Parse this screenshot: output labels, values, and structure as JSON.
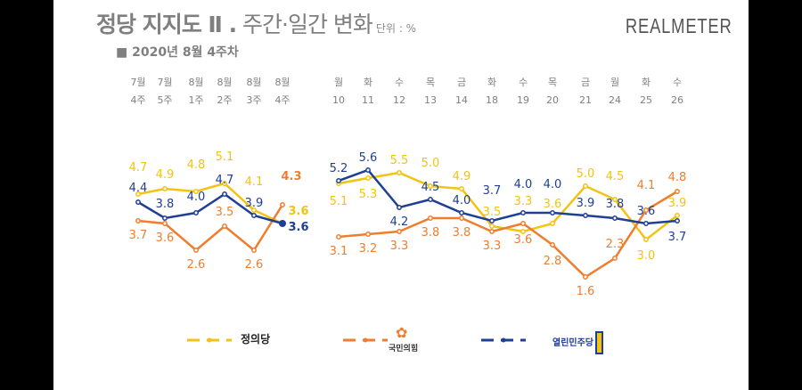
{
  "header": {
    "title_main": "정당 지지도 Ⅱ .",
    "title_sub": " 주간·일간 변화",
    "unit": "단위 : %",
    "week": "■ 2020년 8월 4주차",
    "logo": "REALMETER"
  },
  "chart_data": {
    "type": "line",
    "weekly": {
      "categories": [
        [
          "7월",
          "4주"
        ],
        [
          "7월",
          "5주"
        ],
        [
          "8월",
          "1주"
        ],
        [
          "8월",
          "2주"
        ],
        [
          "8월",
          "3주"
        ],
        [
          "8월",
          "4주"
        ]
      ]
    },
    "daily": {
      "categories": [
        [
          "월",
          "10"
        ],
        [
          "화",
          "11"
        ],
        [
          "수",
          "12"
        ],
        [
          "목",
          "13"
        ],
        [
          "금",
          "14"
        ],
        [
          "화",
          "18"
        ],
        [
          "수",
          "19"
        ],
        [
          "목",
          "20"
        ],
        [
          "금",
          "21"
        ],
        [
          "월",
          "24"
        ],
        [
          "화",
          "25"
        ],
        [
          "수",
          "26"
        ]
      ]
    },
    "series": [
      {
        "name": "정의당",
        "color": "#f2c311",
        "weekly": [
          4.7,
          4.9,
          4.8,
          5.1,
          4.1,
          3.6
        ],
        "daily": [
          5.1,
          5.3,
          5.5,
          5.0,
          4.9,
          3.5,
          3.3,
          3.6,
          5.0,
          4.5,
          3.0,
          3.9
        ]
      },
      {
        "name": "국민의힘",
        "color": "#f07d2e",
        "weekly": [
          3.7,
          3.6,
          2.6,
          3.5,
          2.6,
          4.3
        ],
        "daily": [
          3.1,
          3.2,
          3.3,
          3.8,
          3.8,
          3.3,
          3.6,
          2.8,
          1.6,
          2.3,
          4.1,
          4.8
        ]
      },
      {
        "name": "열린민주당",
        "color": "#1f3f94",
        "weekly": [
          4.4,
          3.8,
          4.0,
          4.7,
          3.9,
          3.6
        ],
        "daily": [
          5.2,
          5.6,
          4.2,
          4.5,
          4.0,
          3.7,
          4.0,
          4.0,
          3.9,
          3.8,
          3.6,
          3.7
        ]
      }
    ],
    "legend": "bottom",
    "grid": false
  }
}
